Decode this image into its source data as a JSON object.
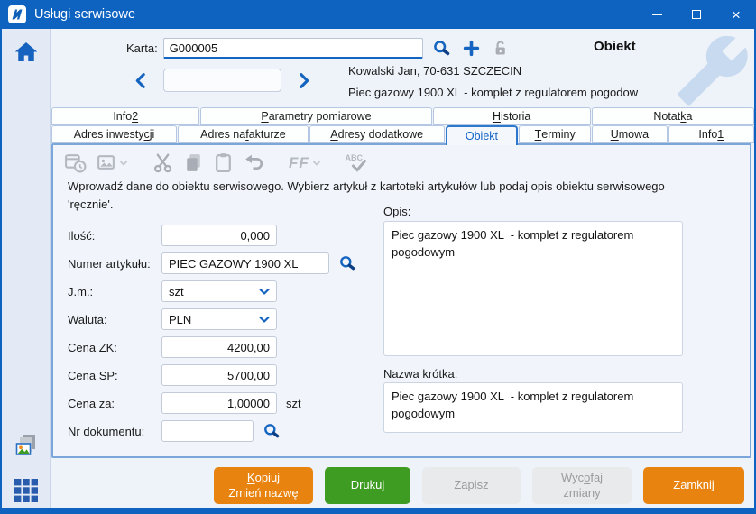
{
  "window": {
    "title": "Usługi serwisowe"
  },
  "header": {
    "karta_label": "Karta:",
    "karta_value": "G000005",
    "nav_value": "",
    "object_title": "Obiekt",
    "customer_line": "Kowalski Jan, 70-631 SZCZECIN",
    "object_line": "Piec gazowy 1900 XL - komplet z regulatorem pogodow"
  },
  "tabs": {
    "row1": [
      {
        "label": "Info &2"
      },
      {
        "label": "&Parametry pomiarowe"
      },
      {
        "label": "&Historia"
      },
      {
        "label": "Notat&ka"
      }
    ],
    "row2": [
      {
        "label": "Adres inwesty&cji"
      },
      {
        "label": "Adres na &fakturze"
      },
      {
        "label": "&Adresy dodatkowe"
      },
      {
        "label": "&Obiekt",
        "selected": true
      },
      {
        "label": "&Terminy"
      },
      {
        "label": "&Umowa"
      },
      {
        "label": "Info &1"
      }
    ]
  },
  "toolbar": {
    "icons": [
      "datetime-icon",
      "insert-image-icon",
      "chevron-down-icon",
      "cut-icon",
      "copy-icon",
      "paste-icon",
      "undo-icon",
      "font-icon",
      "chevron-down-icon",
      "spellcheck-icon"
    ]
  },
  "form": {
    "instruction": "Wprowadź dane do obiektu serwisowego. Wybierz artykuł z kartoteki artykułów lub podaj opis obiektu serwisowego 'ręcznie'.",
    "fields": [
      {
        "label": "Ilość:",
        "value": "0,000"
      },
      {
        "label": "Numer artykułu:",
        "value": "PIEC GAZOWY 1900 XL"
      },
      {
        "label": "J.m.:",
        "value": "szt"
      },
      {
        "label": "Waluta:",
        "value": "PLN"
      },
      {
        "label": "Cena ZK:",
        "value": "4200,00"
      },
      {
        "label": "Cena SP:",
        "value": "5700,00"
      },
      {
        "label": "Cena za:",
        "value": "1,00000",
        "suffix": "szt"
      },
      {
        "label": "Nr dokumentu:",
        "value": ""
      }
    ],
    "opis_label": "Opis:",
    "opis_value": "Piec gazowy 1900 XL  - komplet z regulatorem pogodowym",
    "nazwa_label": "Nazwa krótka:",
    "nazwa_value": "Piec gazowy 1900 XL  - komplet z regulatorem pogodowym"
  },
  "buttons": [
    {
      "label": "&Kopiuj\nZmień nazwę",
      "style": "orange"
    },
    {
      "label": "&Drukuj",
      "style": "green"
    },
    {
      "label": "Zapi&sz",
      "style": "disabled"
    },
    {
      "label": "Wyc&ofaj\nzmiany",
      "style": "disabled"
    },
    {
      "label": "&Zamknij",
      "style": "orange"
    }
  ],
  "colors": {
    "titlebar": "#0e63c1",
    "accent": "#1565c0",
    "button_orange": "#e8830f",
    "button_green": "#3f9c23",
    "disabled_text": "#9b9b9b"
  }
}
